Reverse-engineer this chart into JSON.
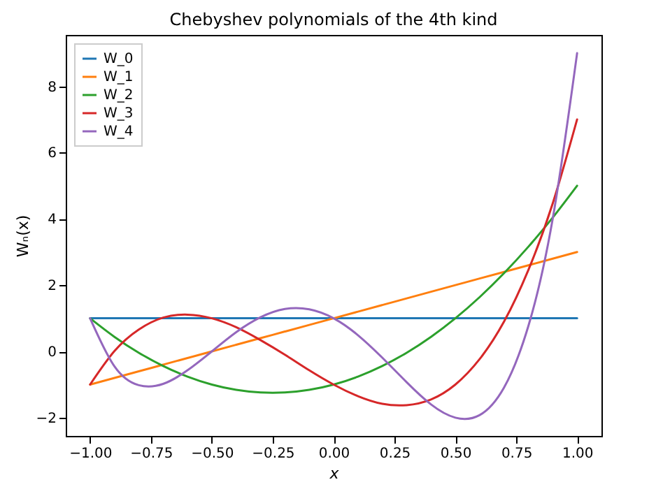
{
  "chart_data": {
    "type": "line",
    "title": "Chebyshev polynomials of the 4th kind",
    "xlabel": "x",
    "ylabel": "Wₙ(x)",
    "x": [
      -1,
      -0.9,
      -0.8,
      -0.7,
      -0.6,
      -0.5,
      -0.4,
      -0.3,
      -0.2,
      -0.1,
      0,
      0.1,
      0.2,
      0.3,
      0.4,
      0.5,
      0.6,
      0.7,
      0.8,
      0.9,
      1
    ],
    "series": [
      {
        "name": "W_0",
        "color": "#1f77b4",
        "values": [
          1,
          1,
          1,
          1,
          1,
          1,
          1,
          1,
          1,
          1,
          1,
          1,
          1,
          1,
          1,
          1,
          1,
          1,
          1,
          1,
          1
        ]
      },
      {
        "name": "W_1",
        "color": "#ff7f0e",
        "values": [
          -1,
          -0.8,
          -0.6,
          -0.4,
          -0.2,
          0,
          0.2,
          0.4,
          0.6,
          0.8,
          1,
          1.2,
          1.4,
          1.6,
          1.8,
          2,
          2.2,
          2.4,
          2.6,
          2.8,
          3
        ]
      },
      {
        "name": "W_2",
        "color": "#2ca02c",
        "values": [
          1,
          0.44,
          -0.04,
          -0.44,
          -0.76,
          -1,
          -1.16,
          -1.24,
          -1.24,
          -1.16,
          -1,
          -0.76,
          -0.44,
          -0.04,
          0.44,
          1,
          1.64,
          2.36,
          3.16,
          4.04,
          5
        ]
      },
      {
        "name": "W_3",
        "color": "#d62728",
        "values": [
          -1,
          0.01,
          0.66,
          1.02,
          1.11,
          1,
          0.73,
          0.34,
          -0.1,
          -0.57,
          -1,
          -1.35,
          -1.58,
          -1.62,
          -1.45,
          -1,
          -0.23,
          0.9,
          2.46,
          4.47,
          7
        ]
      },
      {
        "name": "W_4",
        "color": "#9467bd",
        "values": [
          1,
          -0.45,
          -1.02,
          -0.98,
          -0.57,
          0,
          0.58,
          1.03,
          1.28,
          1.27,
          1,
          0.49,
          -0.19,
          -0.93,
          -1.6,
          -2,
          -1.92,
          -1.09,
          0.77,
          4.01,
          9
        ]
      }
    ],
    "xlim": [
      -1.1,
      1.1
    ],
    "ylim": [
      -2.55,
      9.55
    ],
    "xticks": [
      {
        "value": -1,
        "label": "−1.00"
      },
      {
        "value": -0.75,
        "label": "−0.75"
      },
      {
        "value": -0.5,
        "label": "−0.50"
      },
      {
        "value": -0.25,
        "label": "−0.25"
      },
      {
        "value": 0,
        "label": "0.00"
      },
      {
        "value": 0.25,
        "label": "0.25"
      },
      {
        "value": 0.5,
        "label": "0.50"
      },
      {
        "value": 0.75,
        "label": "0.75"
      },
      {
        "value": 1,
        "label": "1.00"
      }
    ],
    "yticks": [
      {
        "value": -2,
        "label": "−2"
      },
      0,
      2,
      4,
      6,
      8
    ],
    "legend": "top left",
    "grid": false,
    "marker": "none",
    "line_style": "solid"
  }
}
